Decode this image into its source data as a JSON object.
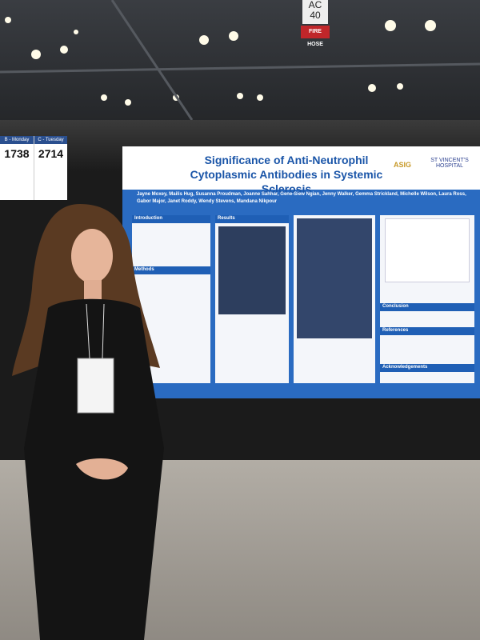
{
  "signs": {
    "column_label": "AC",
    "column_number": "40",
    "fire_hose": "FIRE HOSE"
  },
  "session_cards": [
    {
      "day": "B - Monday",
      "number": "1738"
    },
    {
      "day": "C - Tuesday",
      "number": "2714"
    }
  ],
  "poster": {
    "title": "Significance of Anti-Neutrophil Cytoplasmic Antibodies in Systemic Sclerosis",
    "authors": "Jayne Moxey, Mailis Hug, Susanna Proudman, Joanne Sahhar, Gene-Siew Ngian, Jenny Walker, Gemma Strickland, Michelle Wilson, Laura Ross, Gabor Major, Janet Roddy, Wendy Stevens, Mandana Nikpour",
    "logos": [
      "ASIG",
      "ST VINCENT'S HOSPITAL"
    ],
    "sections": [
      "Introduction",
      "Methods",
      "Results",
      "Conclusion",
      "References",
      "Acknowledgements"
    ]
  }
}
